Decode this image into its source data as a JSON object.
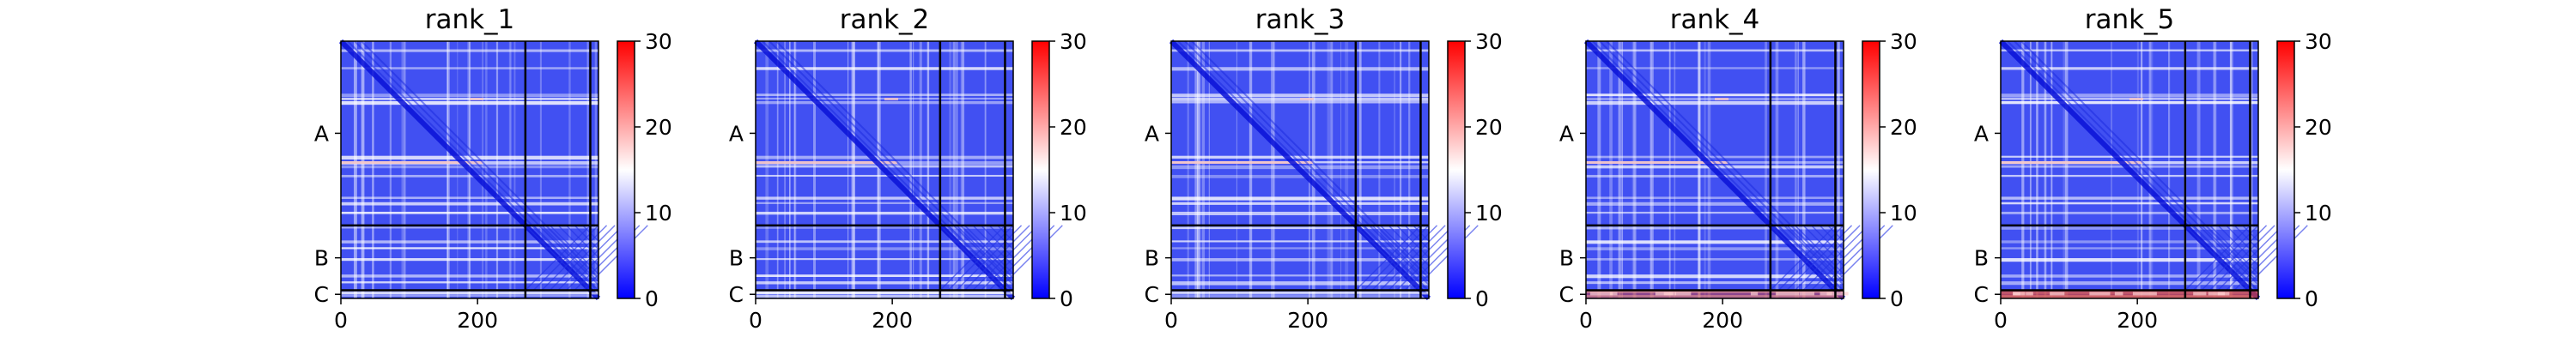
{
  "chart_data": [
    {
      "type": "heatmap",
      "title": "rank_1",
      "yticklabels": [
        "A",
        "B",
        "C"
      ],
      "xticks": [
        0,
        200
      ],
      "colorbar": {
        "min": 0,
        "max": 30,
        "ticks": [
          0,
          10,
          20,
          30
        ]
      }
    },
    {
      "type": "heatmap",
      "title": "rank_2",
      "yticklabels": [
        "A",
        "B",
        "C"
      ],
      "xticks": [
        0,
        200
      ],
      "colorbar": {
        "min": 0,
        "max": 30,
        "ticks": [
          0,
          10,
          20,
          30
        ]
      }
    },
    {
      "type": "heatmap",
      "title": "rank_3",
      "yticklabels": [
        "A",
        "B",
        "C"
      ],
      "xticks": [
        0,
        200
      ],
      "colorbar": {
        "min": 0,
        "max": 30,
        "ticks": [
          0,
          10,
          20,
          30
        ]
      }
    },
    {
      "type": "heatmap",
      "title": "rank_4",
      "yticklabels": [
        "A",
        "B",
        "C"
      ],
      "xticks": [
        0,
        200
      ],
      "colorbar": {
        "min": 0,
        "max": 30,
        "ticks": [
          0,
          10,
          20,
          30
        ]
      }
    },
    {
      "type": "heatmap",
      "title": "rank_5",
      "yticklabels": [
        "A",
        "B",
        "C"
      ],
      "xticks": [
        0,
        200
      ],
      "colorbar": {
        "min": 0,
        "max": 30,
        "ticks": [
          0,
          10,
          20,
          30
        ]
      }
    }
  ],
  "colors": {
    "low": "#0000ff",
    "mid": "#ffffff",
    "high": "#ff0000",
    "base_fill": "#4150f2",
    "frame": "#000000"
  },
  "chain_lengths": {
    "A": 270,
    "B": 95,
    "C": 12
  }
}
